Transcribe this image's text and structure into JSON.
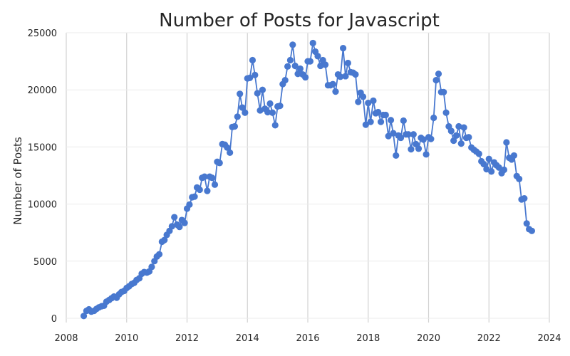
{
  "chart_data": {
    "type": "line",
    "title": "Number of Posts for Javascript",
    "xlabel": "",
    "ylabel": "Number of Posts",
    "xlim": [
      2008.0,
      2024.0
    ],
    "ylim": [
      0,
      25000
    ],
    "x_ticks": [
      "2008",
      "2010",
      "2012",
      "2014",
      "2016",
      "2018",
      "2020",
      "2022",
      "2024"
    ],
    "y_ticks": [
      "0",
      "5000",
      "10000",
      "15000",
      "20000",
      "25000"
    ],
    "grid": true,
    "legend": "none",
    "color": "#4878cf",
    "series": [
      {
        "x": [
          2008.58,
          2008.67,
          2008.75,
          2008.83,
          2008.92,
          2009.0,
          2009.08,
          2009.17,
          2009.25,
          2009.33,
          2009.42,
          2009.5,
          2009.58,
          2009.67,
          2009.75,
          2009.83,
          2009.92,
          2010.0,
          2010.08,
          2010.17,
          2010.25,
          2010.33,
          2010.42,
          2010.5,
          2010.58,
          2010.67,
          2010.75,
          2010.83,
          2010.92,
          2011.0,
          2011.08,
          2011.17,
          2011.25,
          2011.33,
          2011.42,
          2011.5,
          2011.58,
          2011.67,
          2011.75,
          2011.83,
          2011.92,
          2012.0,
          2012.08,
          2012.17,
          2012.25,
          2012.33,
          2012.42,
          2012.5,
          2012.58,
          2012.67,
          2012.75,
          2012.83,
          2012.92,
          2013.0,
          2013.08,
          2013.17,
          2013.25,
          2013.33,
          2013.42,
          2013.5,
          2013.58,
          2013.67,
          2013.75,
          2013.83,
          2013.92,
          2014.0,
          2014.08,
          2014.17,
          2014.25,
          2014.33,
          2014.42,
          2014.5,
          2014.58,
          2014.67,
          2014.75,
          2014.83,
          2014.92,
          2015.0,
          2015.08,
          2015.17,
          2015.25,
          2015.33,
          2015.42,
          2015.5,
          2015.58,
          2015.67,
          2015.75,
          2015.83,
          2015.92,
          2016.0,
          2016.08,
          2016.17,
          2016.25,
          2016.33,
          2016.42,
          2016.5,
          2016.58,
          2016.67,
          2016.75,
          2016.83,
          2016.92,
          2017.0,
          2017.08,
          2017.17,
          2017.25,
          2017.33,
          2017.42,
          2017.5,
          2017.58,
          2017.67,
          2017.75,
          2017.83,
          2017.92,
          2018.0,
          2018.08,
          2018.17,
          2018.25,
          2018.33,
          2018.42,
          2018.5,
          2018.58,
          2018.67,
          2018.75,
          2018.83,
          2018.92,
          2019.0,
          2019.08,
          2019.17,
          2019.25,
          2019.33,
          2019.42,
          2019.5,
          2019.58,
          2019.67,
          2019.75,
          2019.83,
          2019.92,
          2020.0,
          2020.08,
          2020.17,
          2020.25,
          2020.33,
          2020.42,
          2020.5,
          2020.58,
          2020.67,
          2020.75,
          2020.83,
          2020.92,
          2021.0,
          2021.08,
          2021.17,
          2021.25,
          2021.33,
          2021.42,
          2021.5,
          2021.58,
          2021.67,
          2021.75,
          2021.83,
          2021.92,
          2022.0,
          2022.08,
          2022.17,
          2022.25,
          2022.33,
          2022.42,
          2022.5,
          2022.58,
          2022.67,
          2022.75,
          2022.83,
          2022.92,
          2023.0,
          2023.08,
          2023.17,
          2023.25,
          2023.33,
          2023.42
        ],
        "y": [
          200,
          650,
          780,
          580,
          650,
          820,
          950,
          1050,
          1100,
          1450,
          1600,
          1750,
          1900,
          1800,
          2100,
          2300,
          2400,
          2650,
          2800,
          3000,
          3100,
          3350,
          3500,
          3900,
          4050,
          4000,
          4100,
          4500,
          5000,
          5400,
          5600,
          6700,
          6850,
          7300,
          7650,
          8050,
          8850,
          8200,
          8000,
          8600,
          8350,
          9600,
          9950,
          10600,
          10650,
          11450,
          11250,
          12300,
          12400,
          11150,
          12400,
          12300,
          11700,
          13700,
          13600,
          15250,
          15200,
          14950,
          14500,
          16750,
          16800,
          17650,
          19650,
          18450,
          18000,
          21000,
          21050,
          22600,
          21300,
          19700,
          18200,
          20000,
          18350,
          18050,
          18800,
          18000,
          16900,
          18550,
          18600,
          20500,
          20850,
          22050,
          22600,
          23950,
          22100,
          21400,
          21850,
          21350,
          21100,
          22500,
          22500,
          24100,
          23350,
          22950,
          22100,
          22600,
          22200,
          20400,
          20400,
          20500,
          19850,
          21350,
          21150,
          23650,
          21200,
          22350,
          21550,
          21500,
          21350,
          18950,
          19750,
          19400,
          16950,
          18850,
          17200,
          19050,
          17950,
          18050,
          17200,
          17800,
          17800,
          15950,
          17350,
          16200,
          14250,
          16000,
          15800,
          17300,
          16100,
          16100,
          14800,
          16100,
          15250,
          14850,
          15800,
          15650,
          14350,
          15850,
          15700,
          17550,
          20850,
          21400,
          19800,
          19800,
          18000,
          16800,
          16400,
          15550,
          16000,
          16800,
          15300,
          16700,
          15800,
          15850,
          14950,
          14750,
          14600,
          14400,
          13750,
          13500,
          13050,
          13950,
          12850,
          13650,
          13400,
          13200,
          12700,
          13000,
          15400,
          14050,
          13900,
          14250,
          12450,
          12200,
          10400,
          10500,
          8300,
          7800,
          7650
        ]
      }
    ]
  }
}
